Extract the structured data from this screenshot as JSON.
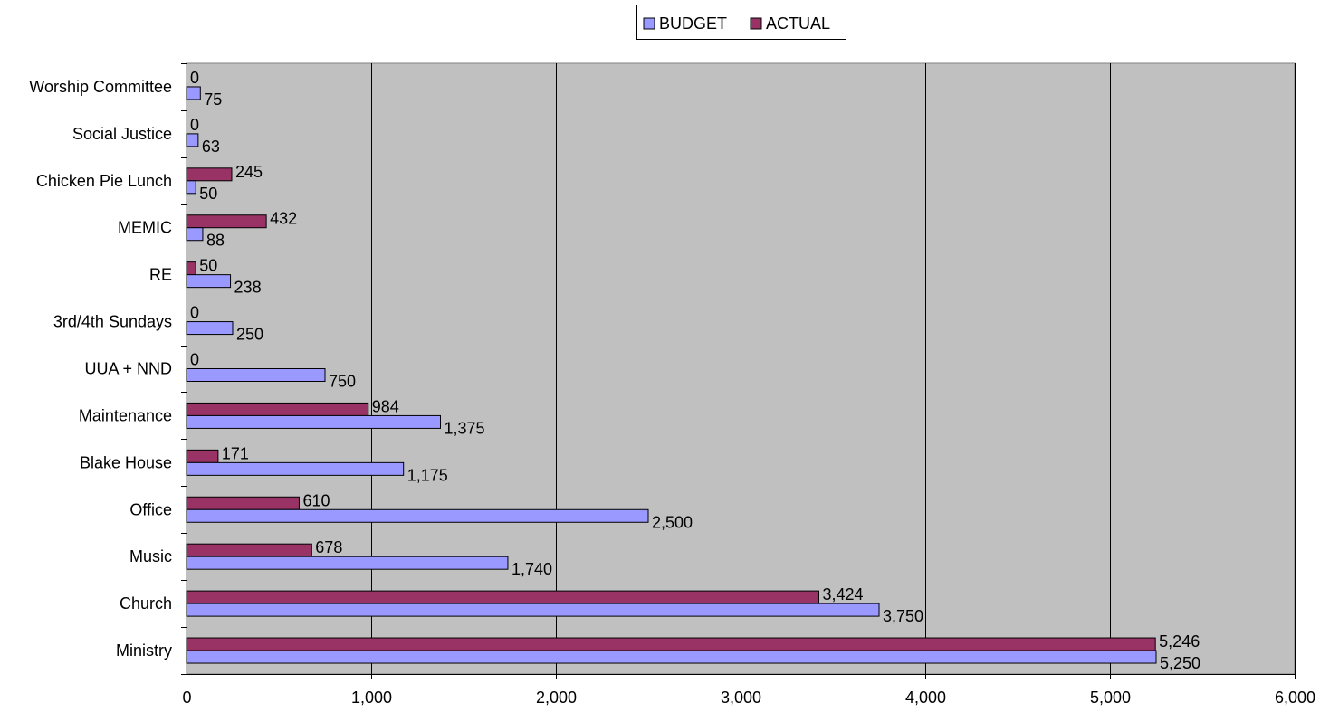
{
  "chart_data": {
    "type": "bar",
    "orientation": "horizontal",
    "categories": [
      "Worship Committee",
      "Social Justice",
      "Chicken Pie Lunch",
      "MEMIC",
      "RE",
      "3rd/4th Sundays",
      "UUA + NND",
      "Maintenance",
      "Blake House",
      "Office",
      "Music",
      "Church",
      "Ministry"
    ],
    "series": [
      {
        "name": "BUDGET",
        "color": "#9999ff",
        "values": [
          75,
          63,
          50,
          88,
          238,
          250,
          750,
          1375,
          1175,
          2500,
          1740,
          3750,
          5250
        ],
        "labels": [
          "75",
          "63",
          "50",
          "88",
          "238",
          "250",
          "750",
          "1,375",
          "1,175",
          "2,500",
          "1,740",
          "3,750",
          "5,250"
        ]
      },
      {
        "name": "ACTUAL",
        "color": "#993366",
        "values": [
          0,
          0,
          245,
          432,
          50,
          0,
          0,
          984,
          171,
          610,
          678,
          3424,
          5246
        ],
        "labels": [
          "0",
          "0",
          "245",
          "432",
          "50",
          "0",
          "0",
          "984",
          "171",
          "610",
          "678",
          "3,424",
          "5,246"
        ]
      }
    ],
    "xlim": [
      0,
      6000
    ],
    "x_ticks": [
      0,
      1000,
      2000,
      3000,
      4000,
      5000,
      6000
    ],
    "x_tick_labels": [
      "0",
      "1,000",
      "2,000",
      "3,000",
      "4,000",
      "5,000",
      "6,000"
    ],
    "title": "",
    "xlabel": "",
    "ylabel": "",
    "grid": true,
    "legend_position": "top-center",
    "plot_background": "#c0c0c0"
  }
}
